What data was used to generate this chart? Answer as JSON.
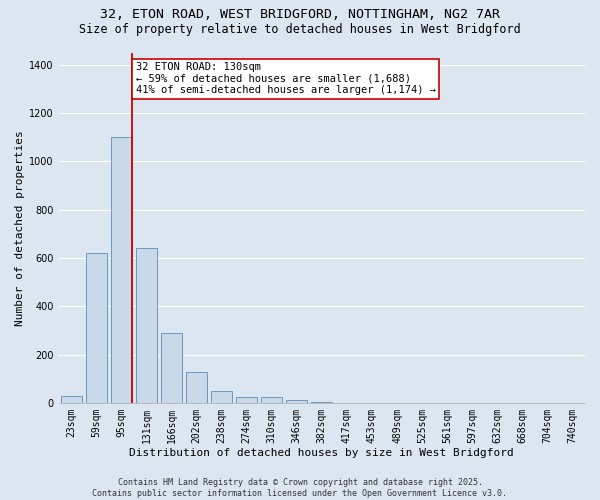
{
  "title_line1": "32, ETON ROAD, WEST BRIDGFORD, NOTTINGHAM, NG2 7AR",
  "title_line2": "Size of property relative to detached houses in West Bridgford",
  "xlabel": "Distribution of detached houses by size in West Bridgford",
  "ylabel": "Number of detached properties",
  "bar_labels": [
    "23sqm",
    "59sqm",
    "95sqm",
    "131sqm",
    "166sqm",
    "202sqm",
    "238sqm",
    "274sqm",
    "310sqm",
    "346sqm",
    "382sqm",
    "417sqm",
    "453sqm",
    "489sqm",
    "525sqm",
    "561sqm",
    "597sqm",
    "632sqm",
    "668sqm",
    "704sqm",
    "740sqm"
  ],
  "bar_heights": [
    30,
    620,
    1100,
    640,
    290,
    130,
    50,
    25,
    25,
    15,
    5,
    0,
    0,
    0,
    0,
    0,
    0,
    0,
    0,
    0,
    0
  ],
  "bar_color": "#c9d9ea",
  "bar_edge_color": "#5b8db8",
  "background_color": "#dce6f0",
  "grid_color": "#ffffff",
  "vline_color": "#cc0000",
  "vline_pos": 2.43,
  "annotation_text": "32 ETON ROAD: 130sqm\n← 59% of detached houses are smaller (1,688)\n41% of semi-detached houses are larger (1,174) →",
  "annotation_box_color": "#ffffff",
  "annotation_box_edge": "#cc0000",
  "ylim": [
    0,
    1450
  ],
  "yticks": [
    0,
    200,
    400,
    600,
    800,
    1000,
    1200,
    1400
  ],
  "footer_line1": "Contains HM Land Registry data © Crown copyright and database right 2025.",
  "footer_line2": "Contains public sector information licensed under the Open Government Licence v3.0.",
  "title_fontsize": 9.5,
  "subtitle_fontsize": 8.5,
  "axis_label_fontsize": 8,
  "tick_fontsize": 7,
  "annotation_fontsize": 7.5,
  "footer_fontsize": 6
}
